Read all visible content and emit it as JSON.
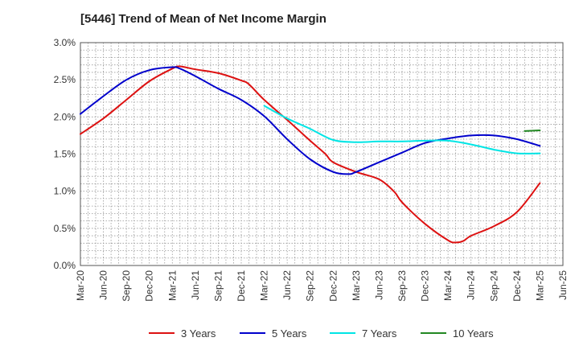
{
  "chart_data": {
    "type": "line",
    "title": "[5446]  Trend of Mean of Net Income Margin",
    "xlabel": "",
    "ylabel": "",
    "x_ticks": [
      "Mar-20",
      "Jun-20",
      "Sep-20",
      "Dec-20",
      "Mar-21",
      "Jun-21",
      "Sep-21",
      "Dec-21",
      "Mar-22",
      "Jun-22",
      "Sep-22",
      "Dec-22",
      "Mar-23",
      "Jun-23",
      "Sep-23",
      "Dec-23",
      "Mar-24",
      "Jun-24",
      "Sep-24",
      "Dec-24",
      "Mar-25",
      "Jun-25"
    ],
    "y_ticks": [
      "0.0%",
      "0.5%",
      "1.0%",
      "1.5%",
      "2.0%",
      "2.5%",
      "3.0%"
    ],
    "ylim": [
      0,
      3.0
    ],
    "grid": true,
    "legend_position": "bottom",
    "series": [
      {
        "name": "3 Years",
        "color": "#dd1111",
        "points": [
          [
            "Mar-20",
            1.77
          ],
          [
            "Jun-20",
            1.98
          ],
          [
            "Sep-20",
            2.23
          ],
          [
            "Dec-20",
            2.48
          ],
          [
            "Mar-21",
            2.65
          ],
          [
            "Apr-21",
            2.68
          ],
          [
            "Jun-21",
            2.64
          ],
          [
            "Sep-21",
            2.59
          ],
          [
            "Dec-21",
            2.49
          ],
          [
            "Jan-22",
            2.44
          ],
          [
            "Mar-22",
            2.23
          ],
          [
            "Jun-22",
            1.96
          ],
          [
            "Sep-22",
            1.68
          ],
          [
            "Nov-22",
            1.5
          ],
          [
            "Dec-22",
            1.39
          ],
          [
            "Mar-23",
            1.26
          ],
          [
            "Jun-23",
            1.16
          ],
          [
            "Aug-23",
            0.99
          ],
          [
            "Sep-23",
            0.85
          ],
          [
            "Dec-23",
            0.56
          ],
          [
            "Mar-24",
            0.34
          ],
          [
            "Apr-24",
            0.31
          ],
          [
            "May-24",
            0.33
          ],
          [
            "Jun-24",
            0.4
          ],
          [
            "Sep-24",
            0.53
          ],
          [
            "Dec-24",
            0.72
          ],
          [
            "Mar-25",
            1.11
          ]
        ]
      },
      {
        "name": "5 Years",
        "color": "#0000cc",
        "points": [
          [
            "Mar-20",
            2.04
          ],
          [
            "Jun-20",
            2.28
          ],
          [
            "Sep-20",
            2.5
          ],
          [
            "Dec-20",
            2.63
          ],
          [
            "Mar-21",
            2.67
          ],
          [
            "Apr-21",
            2.65
          ],
          [
            "Jun-21",
            2.55
          ],
          [
            "Sep-21",
            2.38
          ],
          [
            "Dec-21",
            2.23
          ],
          [
            "Mar-22",
            2.01
          ],
          [
            "Jun-22",
            1.7
          ],
          [
            "Sep-22",
            1.43
          ],
          [
            "Dec-22",
            1.26
          ],
          [
            "Feb-23",
            1.23
          ],
          [
            "Mar-23",
            1.26
          ],
          [
            "Jun-23",
            1.39
          ],
          [
            "Sep-23",
            1.52
          ],
          [
            "Dec-23",
            1.65
          ],
          [
            "Mar-24",
            1.71
          ],
          [
            "Jun-24",
            1.75
          ],
          [
            "Sep-24",
            1.75
          ],
          [
            "Dec-24",
            1.7
          ],
          [
            "Mar-25",
            1.61
          ]
        ]
      },
      {
        "name": "7 Years",
        "color": "#00e5e5",
        "points": [
          [
            "Mar-22",
            2.15
          ],
          [
            "Jun-22",
            1.98
          ],
          [
            "Sep-22",
            1.84
          ],
          [
            "Dec-22",
            1.69
          ],
          [
            "Mar-23",
            1.66
          ],
          [
            "Jun-23",
            1.67
          ],
          [
            "Sep-23",
            1.67
          ],
          [
            "Dec-23",
            1.68
          ],
          [
            "Mar-24",
            1.68
          ],
          [
            "Jun-24",
            1.63
          ],
          [
            "Sep-24",
            1.56
          ],
          [
            "Dec-24",
            1.51
          ],
          [
            "Mar-25",
            1.51
          ]
        ]
      },
      {
        "name": "10 Years",
        "color": "#228822",
        "points": [
          [
            "Jan-25",
            1.81
          ],
          [
            "Mar-25",
            1.82
          ]
        ]
      }
    ]
  }
}
